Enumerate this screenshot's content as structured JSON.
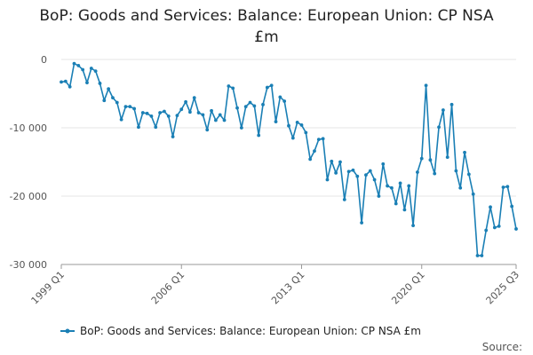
{
  "title": {
    "line1": "BoP: Goods and Services: Balance: European Union: CP NSA",
    "line2": "£m"
  },
  "legend": {
    "label": "BoP: Goods and Services: Balance: European Union: CP NSA £m"
  },
  "source": {
    "label": "Source:"
  },
  "colors": {
    "series": "#1a7fb5",
    "grid": "#e6e6e6",
    "axis": "#999999"
  },
  "chart_data": {
    "type": "line",
    "title": "BoP: Goods and Services: Balance: European Union: CP NSA £m",
    "xlabel": "",
    "ylabel": "",
    "ylim": [
      -30000,
      0
    ],
    "yticks": [
      0,
      -10000,
      -20000,
      -30000
    ],
    "ytick_labels": [
      "0",
      "-10 000",
      "-20 000",
      "-30 000"
    ],
    "xtick_labels": [
      "1999 Q1",
      "2006 Q1",
      "2013 Q1",
      "2020 Q1",
      "2025 Q3"
    ],
    "xtick_positions": [
      "1999 Q1",
      "2006 Q1",
      "2013 Q1",
      "2020 Q1",
      "2025 Q3"
    ],
    "grid": true,
    "legend_position": "bottom",
    "series": [
      {
        "name": "BoP: Goods and Services: Balance: European Union: CP NSA £m",
        "x": [
          "1999 Q1",
          "1999 Q2",
          "1999 Q3",
          "1999 Q4",
          "2000 Q1",
          "2000 Q2",
          "2000 Q3",
          "2000 Q4",
          "2001 Q1",
          "2001 Q2",
          "2001 Q3",
          "2001 Q4",
          "2002 Q1",
          "2002 Q2",
          "2002 Q3",
          "2002 Q4",
          "2003 Q1",
          "2003 Q2",
          "2003 Q3",
          "2003 Q4",
          "2004 Q1",
          "2004 Q2",
          "2004 Q3",
          "2004 Q4",
          "2005 Q1",
          "2005 Q2",
          "2005 Q3",
          "2005 Q4",
          "2006 Q1",
          "2006 Q2",
          "2006 Q3",
          "2006 Q4",
          "2007 Q1",
          "2007 Q2",
          "2007 Q3",
          "2007 Q4",
          "2008 Q1",
          "2008 Q2",
          "2008 Q3",
          "2008 Q4",
          "2009 Q1",
          "2009 Q2",
          "2009 Q3",
          "2009 Q4",
          "2010 Q1",
          "2010 Q2",
          "2010 Q3",
          "2010 Q4",
          "2011 Q1",
          "2011 Q2",
          "2011 Q3",
          "2011 Q4",
          "2012 Q1",
          "2012 Q2",
          "2012 Q3",
          "2012 Q4",
          "2013 Q1",
          "2013 Q2",
          "2013 Q3",
          "2013 Q4",
          "2014 Q1",
          "2014 Q2",
          "2014 Q3",
          "2014 Q4",
          "2015 Q1",
          "2015 Q2",
          "2015 Q3",
          "2015 Q4",
          "2016 Q1",
          "2016 Q2",
          "2016 Q3",
          "2016 Q4",
          "2017 Q1",
          "2017 Q2",
          "2017 Q3",
          "2017 Q4",
          "2018 Q1",
          "2018 Q2",
          "2018 Q3",
          "2018 Q4",
          "2019 Q1",
          "2019 Q2",
          "2019 Q3",
          "2019 Q4",
          "2020 Q1",
          "2020 Q2",
          "2020 Q3",
          "2020 Q4",
          "2021 Q1",
          "2021 Q2",
          "2021 Q3",
          "2021 Q4",
          "2022 Q1",
          "2022 Q2",
          "2022 Q3",
          "2022 Q4",
          "2023 Q1",
          "2023 Q2",
          "2023 Q3",
          "2023 Q4",
          "2024 Q1",
          "2024 Q2",
          "2024 Q3",
          "2024 Q4",
          "2025 Q1",
          "2025 Q2",
          "2025 Q3"
        ],
        "values": [
          -3300,
          -3200,
          -4000,
          -600,
          -900,
          -1500,
          -3400,
          -1300,
          -1700,
          -3500,
          -6000,
          -4300,
          -5600,
          -6300,
          -8800,
          -6900,
          -6900,
          -7200,
          -9900,
          -7800,
          -7900,
          -8300,
          -9900,
          -7800,
          -7600,
          -8300,
          -11300,
          -8200,
          -7300,
          -6200,
          -7700,
          -5600,
          -7800,
          -8100,
          -10300,
          -7500,
          -8900,
          -8100,
          -8900,
          -3900,
          -4200,
          -7100,
          -10000,
          -6900,
          -6300,
          -6800,
          -11100,
          -6600,
          -4100,
          -3800,
          -9100,
          -5500,
          -6100,
          -9700,
          -11500,
          -9200,
          -9600,
          -10700,
          -14600,
          -13400,
          -11700,
          -11600,
          -17600,
          -14900,
          -16600,
          -15000,
          -20500,
          -16400,
          -16200,
          -17100,
          -23900,
          -16900,
          -16300,
          -17600,
          -20000,
          -15300,
          -18500,
          -18800,
          -21100,
          -18100,
          -22000,
          -18500,
          -24300,
          -16500,
          -14500,
          -3800,
          -14700,
          -16700,
          -9900,
          -7400,
          -14300,
          -6600,
          -16300,
          -18800,
          -13600,
          -16800,
          -19700,
          -28700,
          -28700,
          -25000,
          -21600,
          -24600,
          -24400,
          -18700,
          -18600,
          -21500,
          -24800
        ]
      }
    ]
  }
}
